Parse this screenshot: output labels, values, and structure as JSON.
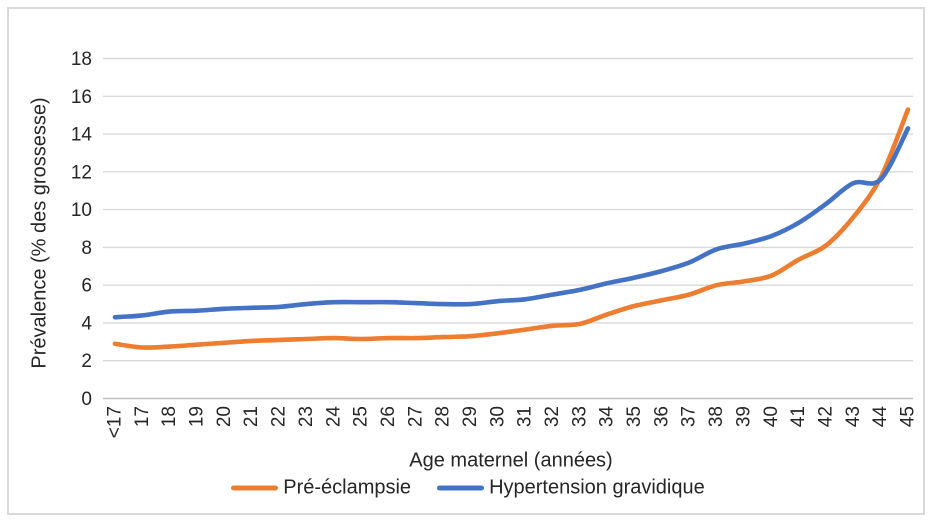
{
  "chart_data": {
    "type": "line",
    "smoothed": true,
    "title": "",
    "xlabel": "Age maternel (années)",
    "ylabel": "Prévalence (% des grossesse)",
    "ylim": [
      0,
      18
    ],
    "ytick_step": 2,
    "grid": true,
    "legend_position": "bottom",
    "categories": [
      "<17",
      "17",
      "18",
      "19",
      "20",
      "21",
      "22",
      "23",
      "24",
      "25",
      "26",
      "27",
      "28",
      "29",
      "30",
      "31",
      "32",
      "33",
      "34",
      "35",
      "36",
      "37",
      "38",
      "39",
      "40",
      "41",
      "42",
      "43",
      "44",
      "45"
    ],
    "series": [
      {
        "name": "Pré-éclampsie",
        "color": "#ED7D31",
        "values": [
          2.9,
          2.7,
          2.75,
          2.85,
          2.95,
          3.05,
          3.1,
          3.15,
          3.2,
          3.15,
          3.2,
          3.2,
          3.25,
          3.3,
          3.45,
          3.65,
          3.85,
          3.95,
          4.45,
          4.9,
          5.2,
          5.5,
          6.0,
          6.2,
          6.5,
          7.35,
          8.1,
          9.6,
          11.7,
          15.3
        ]
      },
      {
        "name": "Hypertension gravidique",
        "color": "#4472C4",
        "values": [
          4.3,
          4.4,
          4.6,
          4.65,
          4.75,
          4.8,
          4.85,
          5.0,
          5.1,
          5.1,
          5.1,
          5.05,
          5.0,
          5.0,
          5.15,
          5.25,
          5.5,
          5.75,
          6.1,
          6.4,
          6.75,
          7.2,
          7.9,
          8.2,
          8.6,
          9.3,
          10.3,
          11.4,
          11.6,
          14.3
        ]
      }
    ]
  },
  "colors": {
    "gridline": "#D9D9D9",
    "axis": "#BFBFBF",
    "text": "#262626",
    "frame_border": "#D9D9D9",
    "background": "#FFFFFF"
  }
}
